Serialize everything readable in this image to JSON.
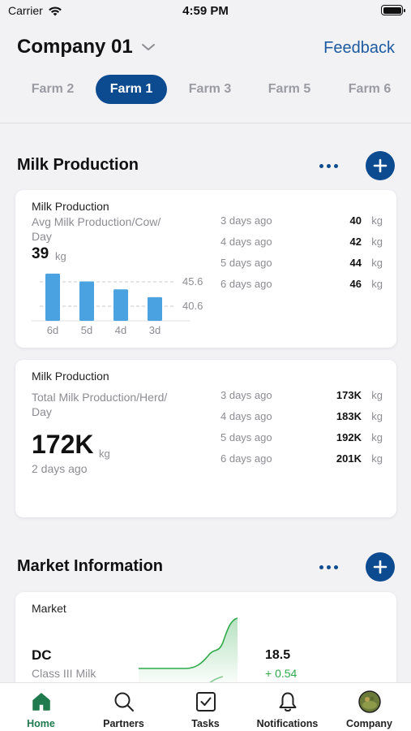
{
  "status_bar": {
    "carrier": "Carrier",
    "time": "4:59 PM"
  },
  "header": {
    "company": "Company 01",
    "feedback": "Feedback",
    "farms": [
      {
        "label": "Farm 2",
        "active": false
      },
      {
        "label": "Farm 1",
        "active": true
      },
      {
        "label": "Farm 3",
        "active": false
      },
      {
        "label": "Farm 5",
        "active": false
      },
      {
        "label": "Farm 6",
        "active": false
      }
    ]
  },
  "milk_section": {
    "title": "Milk Production",
    "card1": {
      "title": "Milk Production",
      "subtitle_line1": "Avg Milk Production/Cow/",
      "subtitle_line2": "Day",
      "value": "39",
      "unit": "kg",
      "chart": {
        "type": "bar",
        "categories": [
          "6d",
          "5d",
          "4d",
          "3d"
        ],
        "values": [
          46,
          44,
          42,
          40
        ],
        "reference_lines": [
          "45.6",
          "40.6"
        ],
        "ylim": [
          34,
          47
        ],
        "bar_color": "#4aa3e0"
      },
      "rows": [
        {
          "label": "3 days ago",
          "value": "40",
          "unit": "kg"
        },
        {
          "label": "4 days ago",
          "value": "42",
          "unit": "kg"
        },
        {
          "label": "5 days ago",
          "value": "44",
          "unit": "kg"
        },
        {
          "label": "6 days ago",
          "value": "46",
          "unit": "kg"
        }
      ]
    },
    "card2": {
      "title": "Milk Production",
      "subtitle_line1": "Total Milk Production/Herd/",
      "subtitle_line2": "Day",
      "value": "172K",
      "unit": "kg",
      "note": "2 days ago",
      "rows": [
        {
          "label": "3 days ago",
          "value": "173K",
          "unit": "kg"
        },
        {
          "label": "4 days ago",
          "value": "183K",
          "unit": "kg"
        },
        {
          "label": "5 days ago",
          "value": "192K",
          "unit": "kg"
        },
        {
          "label": "6 days ago",
          "value": "201K",
          "unit": "kg"
        }
      ]
    }
  },
  "market_section": {
    "title": "Market Information",
    "card": {
      "title": "Market",
      "symbol": "DC",
      "product": "Class III Milk",
      "price": "18.5",
      "change": "+ 0.54",
      "change_color": "#2eaa4a"
    }
  },
  "tabbar": {
    "items": [
      {
        "label": "Home",
        "icon": "home-icon",
        "active": true
      },
      {
        "label": "Partners",
        "icon": "search-icon",
        "active": false
      },
      {
        "label": "Tasks",
        "icon": "checkbox-icon",
        "active": false
      },
      {
        "label": "Notifications",
        "icon": "bell-icon",
        "active": false
      },
      {
        "label": "Company",
        "icon": "avatar-icon",
        "active": false
      }
    ],
    "active_color": "#1f7a4d"
  },
  "colors": {
    "primary": "#0d4b91",
    "link": "#1d5aa0",
    "bar": "#4aa3e0",
    "positive": "#2eaa4a"
  }
}
